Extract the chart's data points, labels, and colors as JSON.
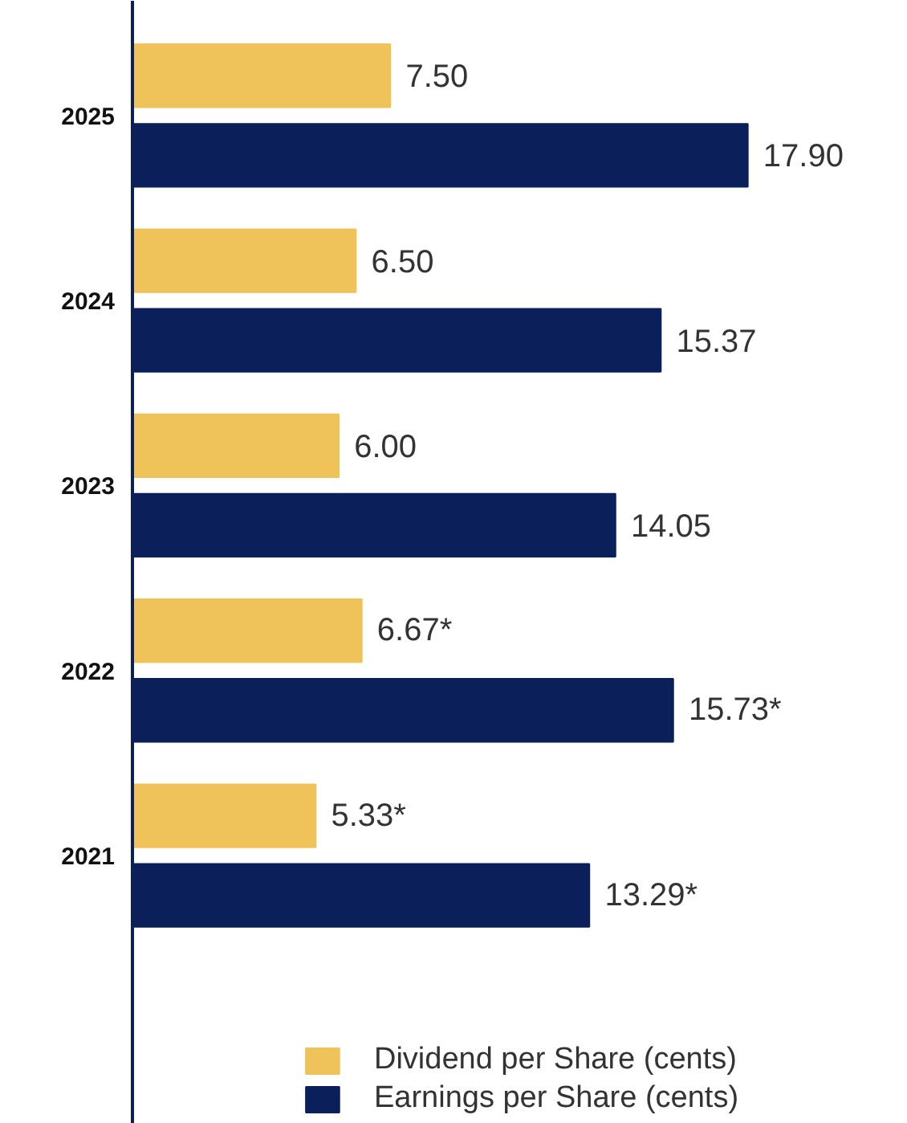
{
  "chart_data": {
    "type": "bar",
    "orientation": "horizontal",
    "categories": [
      "2025",
      "2024",
      "2023",
      "2022",
      "2021"
    ],
    "series": [
      {
        "name": "Dividend per Share (cents)",
        "color": "#efc25a",
        "values": [
          7.5,
          6.5,
          6.0,
          6.67,
          5.33
        ],
        "value_labels": [
          "7.50",
          "6.50",
          "6.00",
          "6.67*",
          "5.33*"
        ]
      },
      {
        "name": "Earnings per Share (cents)",
        "color": "#0b1f5a",
        "values": [
          17.9,
          15.37,
          14.05,
          15.73,
          13.29
        ],
        "value_labels": [
          "17.90",
          "15.37",
          "14.05",
          "15.73*",
          "13.29*"
        ]
      }
    ],
    "legend": "bottom",
    "grid": false
  }
}
